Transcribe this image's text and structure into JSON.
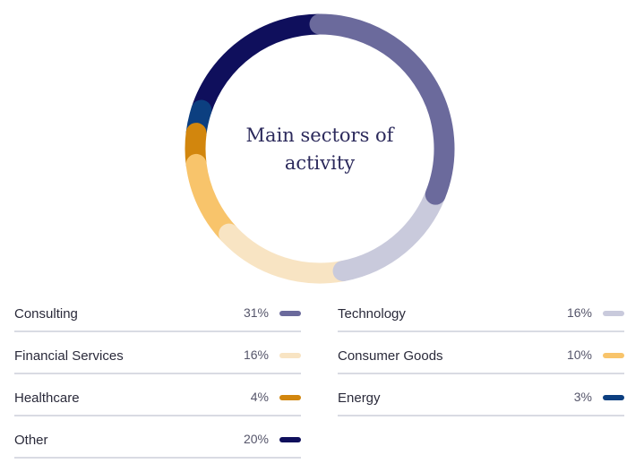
{
  "chart_data": {
    "type": "pie",
    "title": "Main sectors of\nactivity",
    "unit": "%",
    "slices": [
      {
        "label": "Consulting",
        "value": 31,
        "color": "#6b6a9c"
      },
      {
        "label": "Technology",
        "value": 16,
        "color": "#c9cadc"
      },
      {
        "label": "Financial Services",
        "value": 16,
        "color": "#f8e4c3"
      },
      {
        "label": "Consumer Goods",
        "value": 10,
        "color": "#f8c46b"
      },
      {
        "label": "Healthcare",
        "value": 4,
        "color": "#d2860d"
      },
      {
        "label": "Energy",
        "value": 3,
        "color": "#0c3f80"
      },
      {
        "label": "Other",
        "value": 20,
        "color": "#0f0f5c"
      }
    ]
  },
  "legend": {
    "items": [
      {
        "label": "Consulting",
        "value": "31%",
        "color": "#6b6a9c"
      },
      {
        "label": "Technology",
        "value": "16%",
        "color": "#c9cadc"
      },
      {
        "label": "Financial Services",
        "value": "16%",
        "color": "#f8e4c3"
      },
      {
        "label": "Consumer Goods",
        "value": "10%",
        "color": "#f8c46b"
      },
      {
        "label": "Healthcare",
        "value": "4%",
        "color": "#d2860d"
      },
      {
        "label": "Energy",
        "value": "3%",
        "color": "#0c3f80"
      },
      {
        "label": "Other",
        "value": "20%",
        "color": "#0f0f5c"
      }
    ]
  }
}
